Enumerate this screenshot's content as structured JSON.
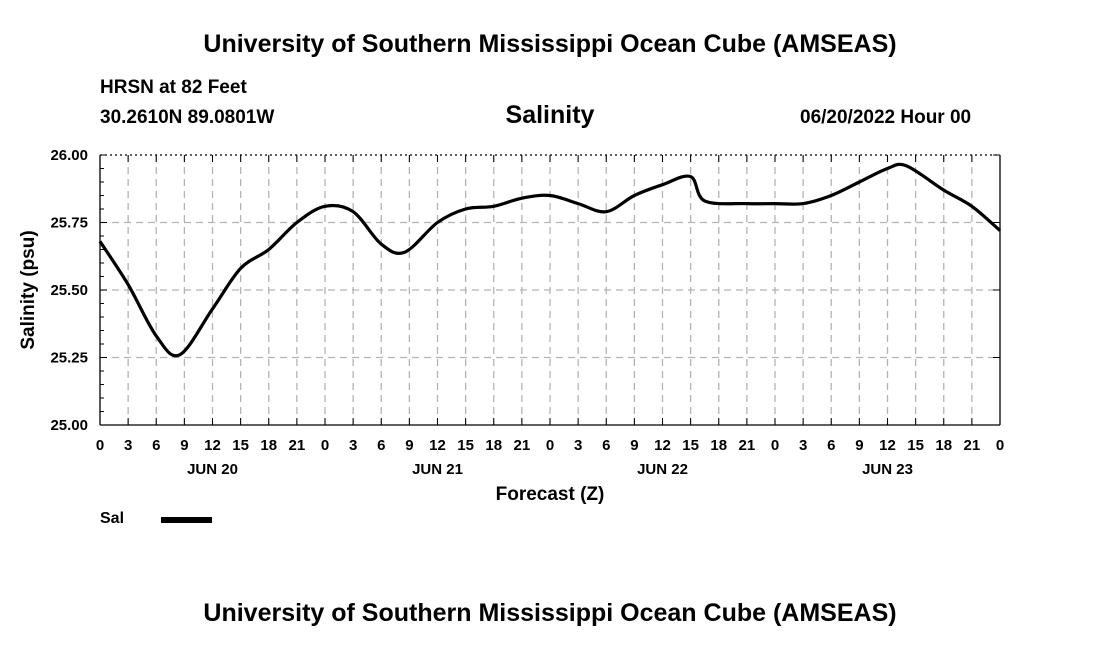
{
  "header": {
    "title_top": "University of Southern Mississippi Ocean Cube (AMSEAS)",
    "title_bottom": "University of Southern Mississippi Ocean Cube (AMSEAS)",
    "station": "HRSN at 82 Feet",
    "coords": "30.2610N  89.0801W",
    "variable": "Salinity",
    "datetime": "06/20/2022 Hour 00"
  },
  "legend": {
    "label": "Sal"
  },
  "chart_data": {
    "type": "line",
    "title": "Salinity",
    "xlabel": "Forecast (Z)",
    "ylabel": "Salinity (psu)",
    "ylim": [
      25.0,
      26.0
    ],
    "yticks": [
      "25.00",
      "25.25",
      "25.50",
      "25.75",
      "26.00"
    ],
    "xlim": [
      0,
      96
    ],
    "x_step_hours": 3,
    "x_tick_labels": [
      "0",
      "3",
      "6",
      "9",
      "12",
      "15",
      "18",
      "21",
      "0",
      "3",
      "6",
      "9",
      "12",
      "15",
      "18",
      "21",
      "0",
      "3",
      "6",
      "9",
      "12",
      "15",
      "18",
      "21",
      "0",
      "3",
      "6",
      "9",
      "12",
      "15",
      "18",
      "21",
      "0"
    ],
    "day_labels": [
      "JUN 20",
      "JUN 21",
      "JUN 22",
      "JUN 23"
    ],
    "grid": true,
    "series": [
      {
        "name": "Sal",
        "color": "#000000",
        "x": [
          0,
          3,
          6,
          8.5,
          12,
          15,
          18,
          21,
          24,
          27,
          30,
          32.5,
          36,
          39,
          42,
          45,
          48,
          51,
          54,
          57,
          60,
          63,
          64.5,
          69,
          72,
          75,
          78,
          81,
          84,
          86,
          90,
          93,
          96
        ],
        "y": [
          25.68,
          25.52,
          25.33,
          25.26,
          25.43,
          25.58,
          25.65,
          25.75,
          25.81,
          25.79,
          25.67,
          25.64,
          25.75,
          25.8,
          25.81,
          25.84,
          25.85,
          25.82,
          25.79,
          25.85,
          25.89,
          25.92,
          25.83,
          25.82,
          25.82,
          25.82,
          25.85,
          25.9,
          25.95,
          25.96,
          25.87,
          25.81,
          25.72
        ]
      }
    ]
  }
}
